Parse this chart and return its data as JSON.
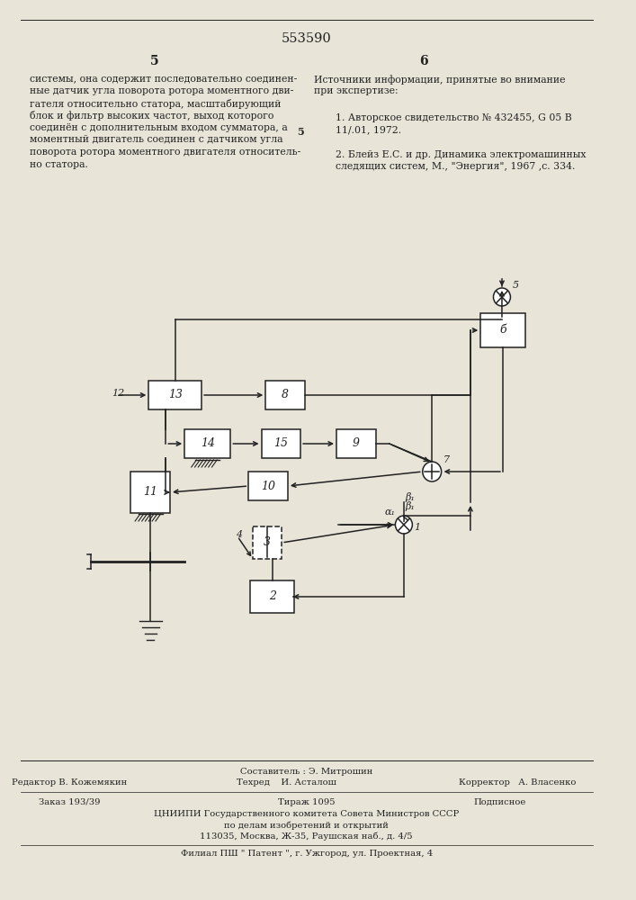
{
  "patent_number": "553590",
  "page_left": "5",
  "page_right": "6",
  "text_left_lines": [
    "системы, она содержит последовательно соединен-",
    "ные датчик угла поворота ротора моментного дви-",
    "гателя относительно статора, масштабирующий",
    "блок и фильтр высоких частот, выход которого",
    "соединён с дополнительным входом сумматора, а",
    "моментный двигатель соединен с датчиком угла",
    "поворота ротора моментного двигателя относитель-",
    "но статора."
  ],
  "ref_num_5": "5",
  "text_right_title": "Источники информации, принятые во внимание",
  "text_right_title2": "при экспертизе:",
  "text_ref1a": "1. Авторское свидетельство № 432455, G 05 B",
  "text_ref1b": "11/.01, 1972.",
  "text_ref2a": "2. Блейз Е.С. и др. Динамика электромашинных",
  "text_ref2b": "следящих систем, М., \"Энергия\", 1967 ,с. 334.",
  "label_5": "5",
  "label_6": "б",
  "label_7": "7",
  "label_8": "8",
  "label_9": "9",
  "label_10": "10",
  "label_11": "11",
  "label_12": "12",
  "label_13": "13",
  "label_14": "14",
  "label_15": "15",
  "label_2": "2",
  "label_1": "1",
  "label_3": "3",
  "label_4": "4",
  "alpha_1": "α₁",
  "beta_1": "β₁",
  "footer_editor": "Редактор В. Кожемякин",
  "footer_composer": "Составитель : Э. Митрошин",
  "footer_techred": "Техред    И. Асталош",
  "footer_corrector": "Корректор   А. Власенко",
  "footer_order": "Заказ 193/39",
  "footer_tirazh": "Тираж 1095",
  "footer_podpisnoe": "Подписное",
  "footer_org1": "ЦНИИПИ Государственного комитета Совета Министров СССР",
  "footer_org2": "по делам изобретений и открытий",
  "footer_addr": "113035, Москва, Ж-35, Раушская наб., д. 4/5",
  "footer_branch": "Филиал ПШ \" Патент \", г. Ужгород, ул. Проектная, 4",
  "bg_color": "#e8e4d8",
  "lc": "#222222"
}
